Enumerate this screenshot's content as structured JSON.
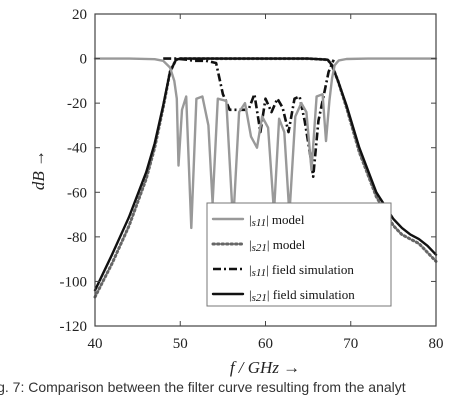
{
  "chart_data": {
    "type": "line",
    "title": "",
    "xlabel": "f / GHz →",
    "ylabel": "dB →",
    "xlim": [
      40,
      80
    ],
    "ylim": [
      -120,
      20
    ],
    "x_ticks": [
      40,
      50,
      60,
      70,
      80
    ],
    "y_ticks": [
      20,
      0,
      -20,
      -40,
      -60,
      -80,
      -100,
      -120
    ],
    "grid": false,
    "legend_position": "bottom-center",
    "series": [
      {
        "name": "|s11| model",
        "legend_symbol": "s11",
        "legend_suffix": "model",
        "color": "#999999",
        "dash": "solid",
        "x": [
          40,
          44,
          47,
          48,
          48.8,
          49.3,
          49.6,
          49.8,
          50.2,
          50.7,
          51.3,
          51.9,
          52.6,
          53.3,
          53.8,
          54.4,
          55.4,
          56.2,
          56.9,
          57.6,
          58.3,
          59,
          59.6,
          60.3,
          61,
          61.6,
          62.2,
          62.8,
          63.5,
          64.2,
          64.8,
          65.4,
          66,
          66.7,
          67.1,
          67.5,
          67.8,
          68.1,
          68.6,
          69.5,
          72,
          76,
          80
        ],
        "y": [
          0,
          0,
          -0.3,
          -1,
          -4,
          -10,
          -18,
          -48,
          -23,
          -17,
          -76,
          -18,
          -17,
          -30,
          -65,
          -18,
          -19,
          -74,
          -24,
          -20,
          -35,
          -40,
          -26,
          -31,
          -69,
          -27,
          -33,
          -70,
          -26,
          -20,
          -24,
          -50,
          -17,
          -16,
          -37,
          -19,
          -9,
          -3,
          -0.8,
          -0.2,
          0,
          0,
          0
        ]
      },
      {
        "name": "|s21| model",
        "legend_symbol": "s21",
        "legend_suffix": "model",
        "color": "#666666",
        "dash": "dotted",
        "x": [
          40,
          42,
          44,
          46,
          47,
          48,
          48.8,
          49.5,
          50,
          55,
          60,
          65,
          67.3,
          67.8,
          68.5,
          69.5,
          71,
          73,
          75,
          76,
          77,
          78,
          79,
          80
        ],
        "y": [
          -107,
          -92,
          -75,
          -54,
          -40,
          -22,
          -6,
          -0.5,
          0,
          0,
          0,
          0,
          -0.5,
          -3,
          -10,
          -22,
          -42,
          -62,
          -75,
          -79,
          -81,
          -83,
          -87,
          -91
        ]
      },
      {
        "name": "|s11| field simulation",
        "legend_symbol": "s11",
        "legend_suffix": "field simulation",
        "color": "#111111",
        "dash": "dashdot",
        "x": [
          48,
          49.5,
          50.8,
          51.6,
          53,
          54.2,
          55,
          55.8,
          57,
          58,
          58.7,
          59.4,
          60,
          60.7,
          61.4,
          62,
          62.7,
          63.4,
          64,
          64.6,
          65.2,
          65.6,
          66.2,
          66.8,
          67.4,
          68
        ],
        "y": [
          0,
          0,
          -0.5,
          -1,
          -1,
          -2,
          -16,
          -23,
          -23,
          -23,
          -16,
          -33,
          -18,
          -24,
          -18,
          -22,
          -33,
          -18,
          -17,
          -28,
          -42,
          -53,
          -28,
          -17,
          -6,
          -0.5
        ]
      },
      {
        "name": "|s21| field simulation",
        "legend_symbol": "s21",
        "legend_suffix": "field simulation",
        "color": "#111111",
        "dash": "solid",
        "x": [
          40,
          42,
          44,
          46,
          47,
          48,
          48.8,
          49.5,
          50,
          55,
          60,
          65,
          67.3,
          67.8,
          68.5,
          69.5,
          71,
          73,
          75,
          76,
          77,
          78,
          79,
          80
        ],
        "y": [
          -104,
          -88,
          -71,
          -51,
          -38,
          -21,
          -6,
          -0.5,
          0,
          0,
          0,
          0,
          -0.5,
          -3,
          -10,
          -21,
          -40,
          -60,
          -72,
          -76,
          -79,
          -81,
          -84,
          -88
        ]
      }
    ]
  },
  "caption": "ig. 7: Comparison between the filter curve resulting from the analyt"
}
